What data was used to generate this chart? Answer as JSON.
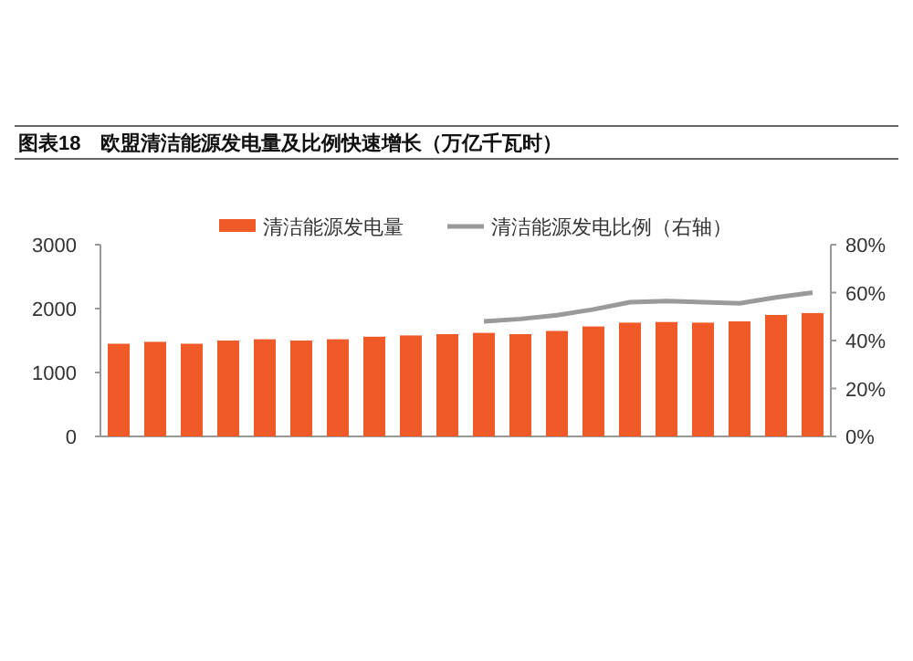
{
  "chart_data": {
    "type": "bar",
    "title": "图表18　欧盟清洁能源发电量及比例快速增长（万亿千瓦时）",
    "categories": [
      null,
      null,
      null,
      null,
      null,
      null,
      null,
      null,
      null,
      null,
      null,
      null,
      null,
      null,
      null,
      null,
      null,
      null,
      null,
      null
    ],
    "series": [
      {
        "name": "清洁能源发电量",
        "color": "#f05a28",
        "values": [
          1450,
          1480,
          1450,
          1500,
          1520,
          1500,
          1520,
          1560,
          1580,
          1600,
          1620,
          1600,
          1650,
          1720,
          1780,
          1790,
          1780,
          1800,
          1900,
          1930
        ]
      },
      {
        "name": "清洁能源发电比例（右轴）",
        "type": "line",
        "axis": "y2",
        "color": "#9a9a9a",
        "values": [
          null,
          null,
          null,
          null,
          null,
          null,
          null,
          null,
          null,
          null,
          48,
          49,
          50.6,
          53,
          56,
          56.5,
          56,
          55.5,
          58,
          60
        ]
      }
    ],
    "ylim": [
      0,
      3000
    ],
    "yticks": [
      0,
      1000,
      2000,
      3000
    ],
    "y2lim": [
      0,
      80
    ],
    "y2ticks": [
      {
        "value": 0,
        "label": "0%"
      },
      {
        "value": 20,
        "label": "20%"
      },
      {
        "value": 40,
        "label": "40%"
      },
      {
        "value": 60,
        "label": "60%"
      },
      {
        "value": 80,
        "label": "80%"
      }
    ],
    "legend": "top",
    "grid": false
  }
}
